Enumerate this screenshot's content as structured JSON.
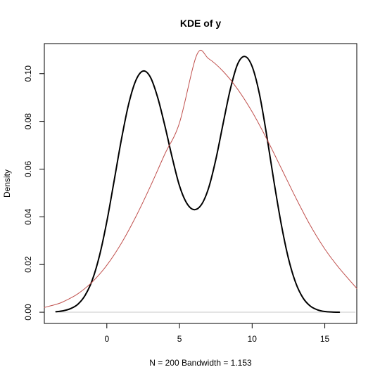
{
  "chart_data": {
    "type": "line",
    "title": "KDE of y",
    "xlabel": "N = 200   Bandwidth = 1.153",
    "ylabel": "Density",
    "xlim": [
      -4.3,
      17.2
    ],
    "ylim": [
      -0.0047,
      0.1126
    ],
    "x_ticks": [
      0,
      5,
      10,
      15
    ],
    "x_tick_labels": [
      "0",
      "5",
      "10",
      "15"
    ],
    "y_ticks": [
      0.0,
      0.02,
      0.04,
      0.06,
      0.08,
      0.1
    ],
    "y_tick_labels": [
      "0.00",
      "0.02",
      "0.04",
      "0.06",
      "0.08",
      "0.10"
    ],
    "grid": false,
    "legend": "none",
    "baseline": {
      "y": 0,
      "color": "#c8c8c8"
    },
    "series": [
      {
        "color": "#000000",
        "line_width": 2,
        "x": [
          -3.5,
          -3.0,
          -2.5,
          -2.0,
          -1.5,
          -1.0,
          -0.5,
          0.0,
          0.5,
          1.0,
          1.5,
          2.0,
          2.5,
          3.0,
          3.5,
          4.0,
          4.5,
          5.0,
          5.5,
          6.0,
          6.5,
          7.0,
          7.5,
          8.0,
          8.5,
          9.0,
          9.5,
          10.0,
          10.5,
          11.0,
          11.5,
          12.0,
          12.5,
          13.0,
          13.5,
          14.0,
          14.5,
          15.0,
          15.5,
          16.0
        ],
        "y": [
          0.0002,
          0.0006,
          0.0015,
          0.0033,
          0.007,
          0.0135,
          0.0238,
          0.038,
          0.055,
          0.0723,
          0.0872,
          0.0972,
          0.1011,
          0.0985,
          0.09,
          0.078,
          0.0648,
          0.053,
          0.0457,
          0.043,
          0.045,
          0.052,
          0.064,
          0.079,
          0.0935,
          0.104,
          0.1072,
          0.103,
          0.0915,
          0.0742,
          0.0548,
          0.037,
          0.0225,
          0.0123,
          0.006,
          0.0026,
          0.001,
          0.0003,
          0.0001,
          0.0
        ]
      },
      {
        "color": "#c0504d",
        "line_width": 1,
        "x": [
          -4.3,
          -3.5,
          -3.0,
          -2.0,
          -1.0,
          0.0,
          1.0,
          2.0,
          3.0,
          4.0,
          5.0,
          6.2,
          7.0,
          8.0,
          9.0,
          10.0,
          11.0,
          12.0,
          13.0,
          14.0,
          15.0,
          16.0,
          17.2
        ],
        "y": [
          0.002,
          0.0033,
          0.0044,
          0.0077,
          0.0127,
          0.0197,
          0.0289,
          0.0401,
          0.0528,
          0.0664,
          0.0794,
          0.108,
          0.1063,
          0.101,
          0.0935,
          0.084,
          0.0727,
          0.0604,
          0.048,
          0.0364,
          0.0265,
          0.0184,
          0.01
        ]
      }
    ]
  }
}
